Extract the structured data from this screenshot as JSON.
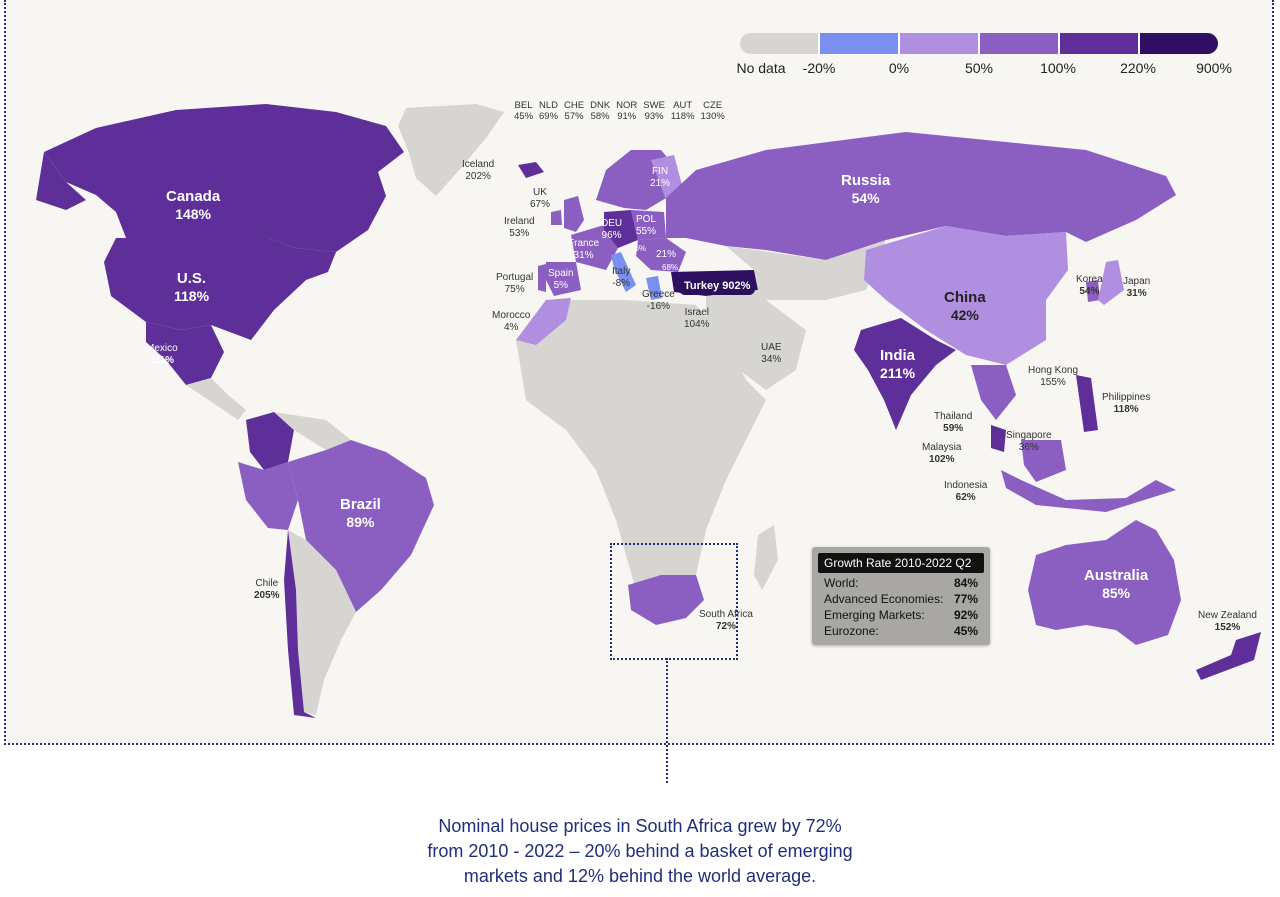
{
  "legend": {
    "colors": [
      "#d7d5d2",
      "#7b8ff0",
      "#b08ee0",
      "#8a5fc1",
      "#5e2f98",
      "#2e0f63"
    ],
    "labels": [
      "No data",
      "-20%",
      "0%",
      "50%",
      "100%",
      "220%",
      "900%"
    ]
  },
  "countries": {
    "canada": {
      "name": "Canada",
      "value": "148%"
    },
    "us": {
      "name": "U.S.",
      "value": "118%"
    },
    "mexico": {
      "name": "Mexico",
      "value": "111%"
    },
    "brazil": {
      "name": "Brazil",
      "value": "89%"
    },
    "chile": {
      "name": "Chile",
      "value": "205%"
    },
    "russia": {
      "name": "Russia",
      "value": "54%"
    },
    "china": {
      "name": "China",
      "value": "42%"
    },
    "india": {
      "name": "India",
      "value": "211%"
    },
    "australia": {
      "name": "Australia",
      "value": "85%"
    },
    "new_zealand": {
      "name": "New Zealand",
      "value": "152%"
    },
    "south_africa": {
      "name": "South Africa",
      "value": "72%"
    },
    "japan": {
      "name": "Japan",
      "value": "31%"
    },
    "korea": {
      "name": "Korea",
      "value": "54%"
    },
    "hong_kong": {
      "name": "Hong Kong",
      "value": "155%"
    },
    "philippines": {
      "name": "Philippines",
      "value": "118%"
    },
    "thailand": {
      "name": "Thailand",
      "value": "59%"
    },
    "malaysia": {
      "name": "Malaysia",
      "value": "102%"
    },
    "singapore": {
      "name": "Singapore",
      "value": "36%"
    },
    "indonesia": {
      "name": "Indonesia",
      "value": "62%"
    },
    "uae": {
      "name": "UAE",
      "value": "34%"
    },
    "israel": {
      "name": "Israel",
      "value": "104%"
    },
    "turkey": {
      "label": "Turkey 902%"
    },
    "greece": {
      "name": "Greece",
      "value": "-16%"
    },
    "italy": {
      "name": "Italy",
      "value": "-8%"
    },
    "spain": {
      "name": "Spain",
      "value": "5%"
    },
    "portugal": {
      "name": "Portugal",
      "value": "75%"
    },
    "morocco": {
      "name": "Morocco",
      "value": "4%"
    },
    "france": {
      "name": "France",
      "value": "31%"
    },
    "ireland": {
      "name": "Ireland",
      "value": "53%"
    },
    "uk": {
      "name": "UK",
      "value": "67%"
    },
    "iceland": {
      "name": "Iceland",
      "value": "202%"
    },
    "deu": {
      "name": "DEU",
      "value": "96%"
    },
    "pol": {
      "name": "POL",
      "value": "55%"
    },
    "fin": {
      "name": "FIN",
      "value": "21%"
    },
    "hun": {
      "value": "16%"
    },
    "rou": {
      "value": "21%"
    },
    "bgr": {
      "value": "68%"
    }
  },
  "eu_codes": [
    {
      "code": "BEL",
      "value": "45%"
    },
    {
      "code": "NLD",
      "value": "69%"
    },
    {
      "code": "CHE",
      "value": "57%"
    },
    {
      "code": "DNK",
      "value": "58%"
    },
    {
      "code": "NOR",
      "value": "91%"
    },
    {
      "code": "SWE",
      "value": "93%"
    },
    {
      "code": "AUT",
      "value": "118%"
    },
    {
      "code": "CZE",
      "value": "130%"
    }
  ],
  "stats": {
    "title": "Growth Rate 2010-2022 Q2",
    "rows": [
      {
        "label": "World:",
        "value": "84%"
      },
      {
        "label": "Advanced Economies:",
        "value": "77%"
      },
      {
        "label": "Emerging Markets:",
        "value": "92%"
      },
      {
        "label": "Eurozone:",
        "value": "45%"
      }
    ]
  },
  "caption": {
    "line1": "Nominal house prices in South Africa grew by 72%",
    "line2": "from 2010 - 2022 – 20% behind a basket of emerging",
    "line3": "markets and 12% behind the world average."
  }
}
